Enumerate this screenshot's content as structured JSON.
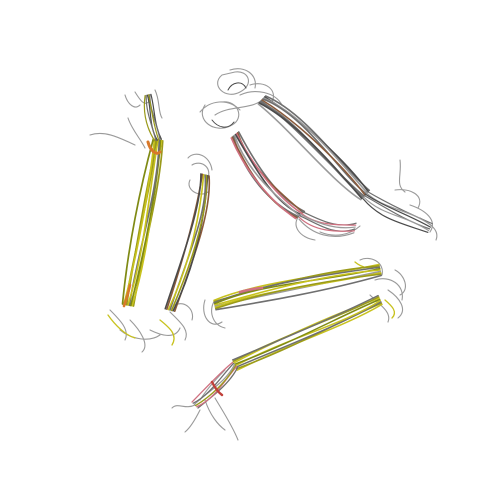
{
  "scene": {
    "description_free": true,
    "background": "#ffffff",
    "colors": {
      "grey": "#6f6f6f",
      "grey_light": "#9a9a9a",
      "olive": "#9a9a1a",
      "olive_dark": "#7f8a14",
      "yellow": "#c8c21e",
      "brown": "#8a5a3a",
      "orange": "#d8782a",
      "pink": "#d07080",
      "red": "#c0403a",
      "dark": "#4a4a4a"
    }
  }
}
